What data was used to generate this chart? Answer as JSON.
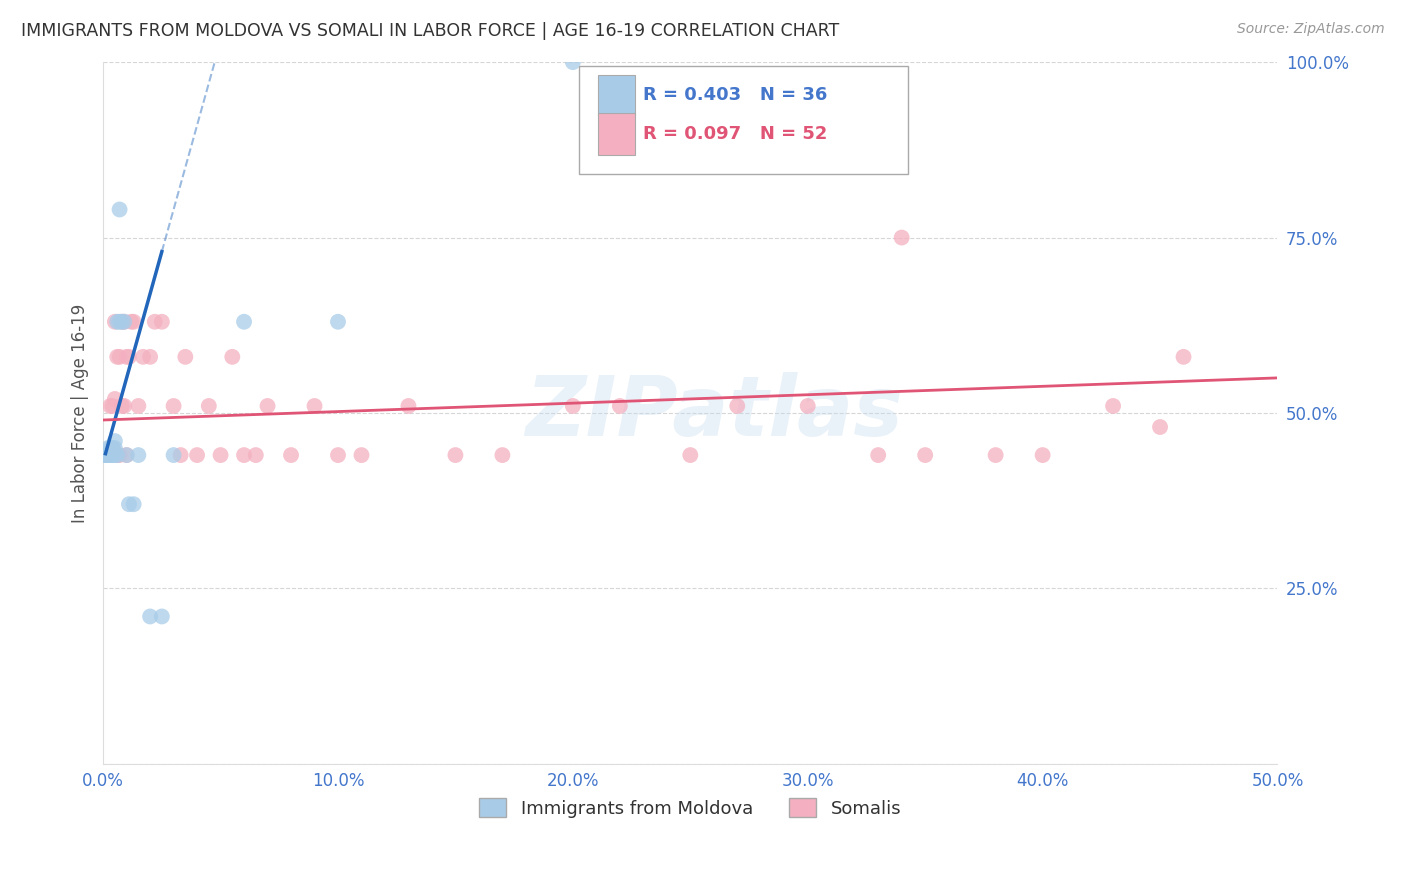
{
  "title": "IMMIGRANTS FROM MOLDOVA VS SOMALI IN LABOR FORCE | AGE 16-19 CORRELATION CHART",
  "source": "Source: ZipAtlas.com",
  "ylabel": "In Labor Force | Age 16-19",
  "watermark": "ZIPatlas",
  "xlim": [
    0.0,
    0.5
  ],
  "ylim": [
    0.0,
    1.0
  ],
  "xticks": [
    0.0,
    0.1,
    0.2,
    0.3,
    0.4,
    0.5
  ],
  "yticks": [
    0.0,
    0.25,
    0.5,
    0.75,
    1.0
  ],
  "xticklabels": [
    "0.0%",
    "10.0%",
    "20.0%",
    "30.0%",
    "40.0%",
    "50.0%"
  ],
  "yticklabels_right": [
    "",
    "25.0%",
    "50.0%",
    "75.0%",
    "100.0%"
  ],
  "moldova_R": 0.403,
  "moldova_N": 36,
  "somali_R": 0.097,
  "somali_N": 52,
  "moldova_color": "#a8cce8",
  "somali_color": "#f4b0c0",
  "moldova_line_color": "#2266bb",
  "somali_line_color": "#e05575",
  "grid_color": "#cccccc",
  "title_color": "#333333",
  "axis_color": "#4477cc",
  "background_color": "#ffffff",
  "moldova_x": [
    0.001,
    0.001,
    0.001,
    0.001,
    0.001,
    0.002,
    0.002,
    0.002,
    0.002,
    0.002,
    0.003,
    0.003,
    0.003,
    0.003,
    0.004,
    0.004,
    0.004,
    0.005,
    0.005,
    0.005,
    0.006,
    0.006,
    0.007,
    0.007,
    0.008,
    0.009,
    0.01,
    0.011,
    0.013,
    0.015,
    0.02,
    0.025,
    0.03,
    0.06,
    0.1,
    0.2
  ],
  "moldova_y": [
    0.44,
    0.44,
    0.44,
    0.44,
    0.44,
    0.44,
    0.44,
    0.44,
    0.44,
    0.45,
    0.44,
    0.44,
    0.44,
    0.45,
    0.44,
    0.45,
    0.45,
    0.44,
    0.45,
    0.46,
    0.44,
    0.63,
    0.63,
    0.79,
    0.63,
    0.63,
    0.44,
    0.37,
    0.37,
    0.44,
    0.21,
    0.21,
    0.44,
    0.63,
    0.63,
    1.0
  ],
  "somali_x": [
    0.003,
    0.004,
    0.005,
    0.005,
    0.006,
    0.006,
    0.007,
    0.007,
    0.008,
    0.008,
    0.009,
    0.009,
    0.01,
    0.01,
    0.011,
    0.012,
    0.013,
    0.015,
    0.017,
    0.02,
    0.022,
    0.025,
    0.03,
    0.033,
    0.035,
    0.04,
    0.045,
    0.05,
    0.055,
    0.06,
    0.065,
    0.07,
    0.08,
    0.09,
    0.1,
    0.11,
    0.13,
    0.15,
    0.17,
    0.2,
    0.22,
    0.25,
    0.27,
    0.3,
    0.33,
    0.35,
    0.38,
    0.4,
    0.43,
    0.46,
    0.34,
    0.45
  ],
  "somali_y": [
    0.51,
    0.51,
    0.52,
    0.63,
    0.44,
    0.58,
    0.44,
    0.58,
    0.51,
    0.63,
    0.51,
    0.63,
    0.44,
    0.58,
    0.58,
    0.63,
    0.63,
    0.51,
    0.58,
    0.58,
    0.63,
    0.63,
    0.51,
    0.44,
    0.58,
    0.44,
    0.51,
    0.44,
    0.58,
    0.44,
    0.44,
    0.51,
    0.44,
    0.51,
    0.44,
    0.44,
    0.51,
    0.44,
    0.44,
    0.51,
    0.51,
    0.44,
    0.51,
    0.51,
    0.44,
    0.44,
    0.44,
    0.44,
    0.51,
    0.58,
    0.75,
    0.48
  ]
}
